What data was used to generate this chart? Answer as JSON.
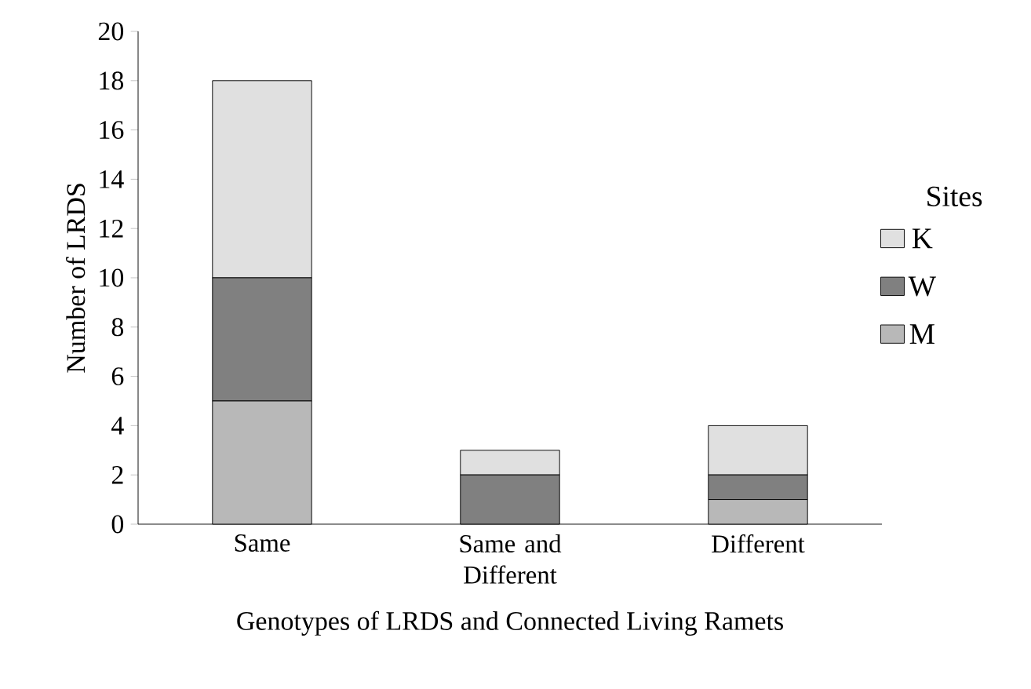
{
  "chart_data": {
    "type": "bar",
    "stacked": true,
    "xlabel": "Genotypes of LRDS and Connected Living Ramets",
    "ylabel": "Number of LRDS",
    "legend_title": "Sites",
    "legend": "right",
    "categories": [
      "Same",
      "Same and Different",
      "Different"
    ],
    "series": [
      {
        "name": "M",
        "color": "#b8b8b8",
        "values": [
          5,
          0,
          1
        ]
      },
      {
        "name": "W",
        "color": "#808080",
        "values": [
          5,
          2,
          1
        ]
      },
      {
        "name": "K",
        "color": "#e0e0e0",
        "values": [
          8,
          1,
          2
        ]
      }
    ],
    "ylim": [
      0,
      20
    ],
    "yticks": [
      0,
      2,
      4,
      6,
      8,
      10,
      12,
      14,
      16,
      18,
      20
    ],
    "grid": false
  }
}
